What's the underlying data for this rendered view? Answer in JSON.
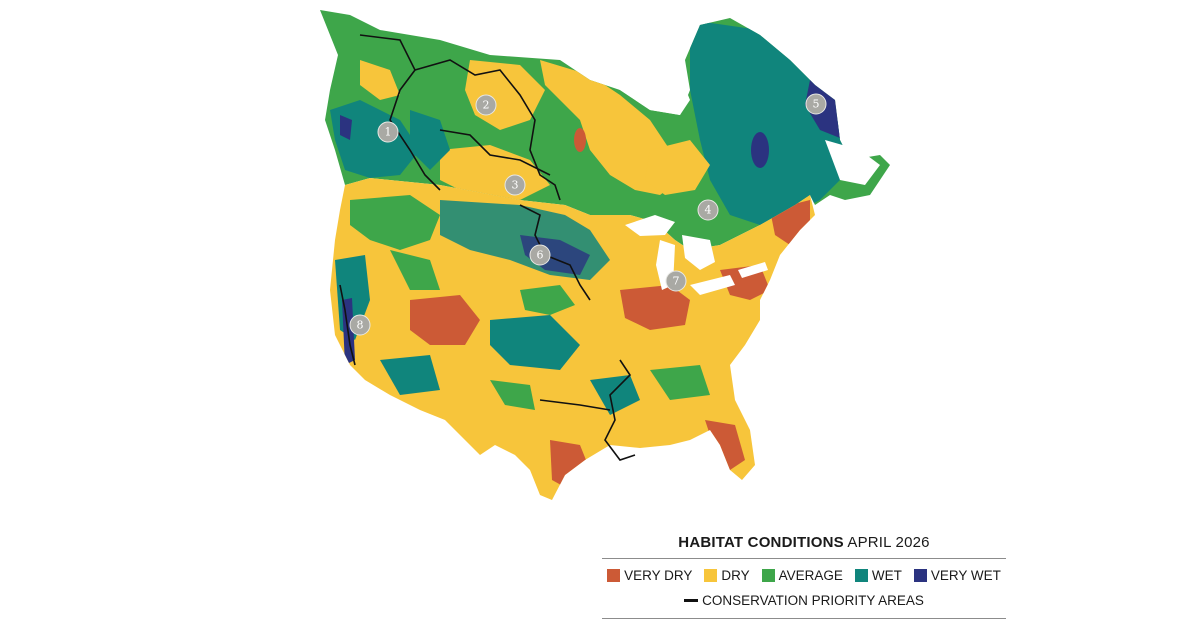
{
  "legend": {
    "title_bold": "HABITAT CONDITIONS",
    "title_rest": " APRIL 2026",
    "categories": [
      {
        "label": "VERY DRY",
        "color": "#cc5a36"
      },
      {
        "label": "DRY",
        "color": "#f7c53b"
      },
      {
        "label": "AVERAGE",
        "color": "#3ea64a"
      },
      {
        "label": "WET",
        "color": "#10857c"
      },
      {
        "label": "VERY WET",
        "color": "#2b3380"
      }
    ],
    "line_label": "CONSERVATION PRIORITY AREAS"
  },
  "markers": [
    {
      "label": "1"
    },
    {
      "label": "2"
    },
    {
      "label": "3"
    },
    {
      "label": "4"
    },
    {
      "label": "5"
    },
    {
      "label": "6"
    },
    {
      "label": "7"
    },
    {
      "label": "8"
    }
  ],
  "colors": {
    "very_dry": "#cc5a36",
    "dry": "#f7c53b",
    "average": "#3ea64a",
    "wet": "#10857c",
    "very_wet": "#2b3380",
    "water": "#ffffff",
    "marker": "#a9a9a4"
  }
}
